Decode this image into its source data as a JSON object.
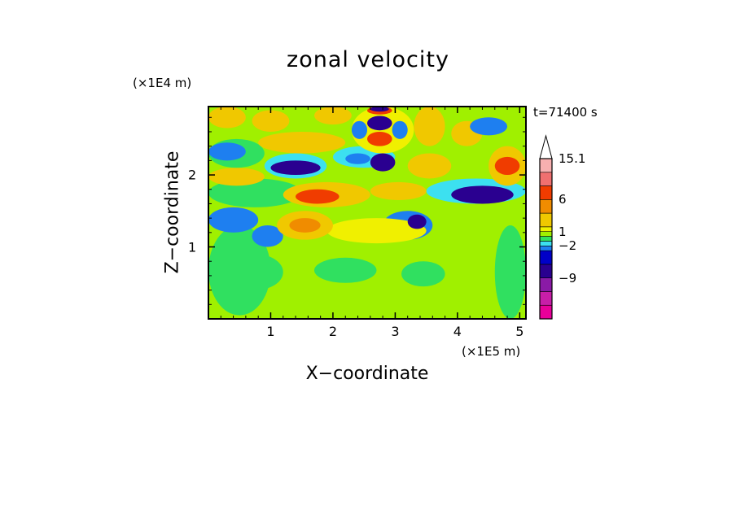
{
  "chart_data": {
    "type": "heatmap",
    "title": "zonal velocity",
    "xlabel": "X−coordinate",
    "ylabel": "Z−coordinate",
    "x_multiplier": "(×1E5 m)",
    "y_multiplier": "(×1E4 m)",
    "time_label": "t=71400 s",
    "xlim": [
      0,
      5.1
    ],
    "ylim": [
      0,
      2.95
    ],
    "x_ticks": [
      1,
      2,
      3,
      4,
      5
    ],
    "x_tick_labels": [
      "1",
      "2",
      "3",
      "4",
      "5"
    ],
    "y_ticks": [
      1,
      2
    ],
    "y_tick_labels": [
      "1",
      "2"
    ],
    "colorbar": {
      "levels": [
        -15,
        -12,
        -9,
        -6,
        -3,
        -2,
        -1,
        0,
        1,
        2,
        4,
        6,
        9,
        12,
        15.1
      ],
      "colors": [
        "#e8009a",
        "#c81ea8",
        "#8a1aa6",
        "#2a0090",
        "#0000c8",
        "#1e7ff0",
        "#3ce0f0",
        "#30e060",
        "#a0f000",
        "#f0f000",
        "#f0c800",
        "#f08c00",
        "#f03c00",
        "#f07070",
        "#f8b0b0",
        "#ffffff"
      ],
      "labels": [
        {
          "value": 15.1,
          "text": "15.1"
        },
        {
          "value": 6,
          "text": "6"
        },
        {
          "value": 1,
          "text": "1"
        },
        {
          "value": -2,
          "text": "−2"
        },
        {
          "value": -9,
          "text": "−9"
        }
      ]
    },
    "regions": [
      {
        "x": [
          0,
          5.1
        ],
        "z": [
          0,
          2.95
        ],
        "u": 0.5
      },
      {
        "x": [
          0,
          1.0
        ],
        "z": [
          0.05,
          1.3
        ],
        "u": -0.5
      },
      {
        "x": [
          4.6,
          5.1
        ],
        "z": [
          0,
          1.3
        ],
        "u": -0.5
      },
      {
        "x": [
          0.3,
          1.2
        ],
        "z": [
          0.4,
          0.9
        ],
        "u": -0.6
      },
      {
        "x": [
          1.7,
          2.7
        ],
        "z": [
          0.5,
          0.85
        ],
        "u": -0.5
      },
      {
        "x": [
          3.1,
          3.8
        ],
        "z": [
          0.45,
          0.8
        ],
        "u": -0.5
      },
      {
        "x": [
          0,
          0.8
        ],
        "z": [
          1.2,
          1.55
        ],
        "u": -2.5
      },
      {
        "x": [
          0.7,
          1.2
        ],
        "z": [
          1.0,
          1.3
        ],
        "u": -2.5
      },
      {
        "x": [
          2.8,
          3.6
        ],
        "z": [
          1.1,
          1.5
        ],
        "u": -2.5
      },
      {
        "x": [
          0,
          1.5
        ],
        "z": [
          1.55,
          1.95
        ],
        "u": -0.5
      },
      {
        "x": [
          1.9,
          3.5
        ],
        "z": [
          1.05,
          1.4
        ],
        "u": 1.5
      },
      {
        "x": [
          1.1,
          2.0
        ],
        "z": [
          1.1,
          1.5
        ],
        "u": 3
      },
      {
        "x": [
          1.3,
          1.8
        ],
        "z": [
          1.2,
          1.4
        ],
        "u": 5
      },
      {
        "x": [
          1.2,
          2.6
        ],
        "z": [
          1.55,
          1.9
        ],
        "u": 3
      },
      {
        "x": [
          1.4,
          2.1
        ],
        "z": [
          1.6,
          1.8
        ],
        "u": 6.5
      },
      {
        "x": [
          2.6,
          3.5
        ],
        "z": [
          1.65,
          1.9
        ],
        "u": 2.5
      },
      {
        "x": [
          3.2,
          3.5
        ],
        "z": [
          1.25,
          1.45
        ],
        "u": -7
      },
      {
        "x": [
          0,
          0.9
        ],
        "z": [
          1.85,
          2.1
        ],
        "u": 2.5
      },
      {
        "x": [
          0,
          0.9
        ],
        "z": [
          2.1,
          2.5
        ],
        "u": -0.5
      },
      {
        "x": [
          0,
          0.6
        ],
        "z": [
          2.2,
          2.45
        ],
        "u": -2.5
      },
      {
        "x": [
          0.9,
          1.9
        ],
        "z": [
          1.95,
          2.3
        ],
        "u": -1.5
      },
      {
        "x": [
          1.0,
          1.8
        ],
        "z": [
          2.0,
          2.2
        ],
        "u": -7
      },
      {
        "x": [
          0.8,
          2.2
        ],
        "z": [
          2.3,
          2.6
        ],
        "u": 2.5
      },
      {
        "x": [
          2.0,
          3.0
        ],
        "z": [
          2.1,
          2.4
        ],
        "u": -1.5
      },
      {
        "x": [
          2.2,
          2.6
        ],
        "z": [
          2.15,
          2.3
        ],
        "u": -2.5
      },
      {
        "x": [
          2.6,
          3.0
        ],
        "z": [
          2.05,
          2.3
        ],
        "u": -7
      },
      {
        "x": [
          3.2,
          3.9
        ],
        "z": [
          1.95,
          2.3
        ],
        "u": 2.5
      },
      {
        "x": [
          3.5,
          5.1
        ],
        "z": [
          1.6,
          1.95
        ],
        "u": -1.5
      },
      {
        "x": [
          3.9,
          4.9
        ],
        "z": [
          1.6,
          1.85
        ],
        "u": -7
      },
      {
        "x": [
          4.5,
          5.1
        ],
        "z": [
          1.85,
          2.4
        ],
        "u": 3
      },
      {
        "x": [
          4.6,
          5.0
        ],
        "z": [
          2.0,
          2.25
        ],
        "u": 6.5
      },
      {
        "x": [
          3.9,
          4.4
        ],
        "z": [
          2.4,
          2.75
        ],
        "u": 2.5
      },
      {
        "x": [
          4.2,
          4.8
        ],
        "z": [
          2.55,
          2.8
        ],
        "u": -2.5
      },
      {
        "x": [
          0,
          0.6
        ],
        "z": [
          2.65,
          2.95
        ],
        "u": 2.5
      },
      {
        "x": [
          0.7,
          1.3
        ],
        "z": [
          2.6,
          2.9
        ],
        "u": 3
      },
      {
        "x": [
          1.7,
          2.3
        ],
        "z": [
          2.7,
          2.95
        ],
        "u": 2.5
      },
      {
        "x": [
          2.3,
          3.3
        ],
        "z": [
          2.3,
          2.95
        ],
        "u": 1.5
      },
      {
        "x": [
          2.55,
          2.95
        ],
        "z": [
          2.4,
          2.6
        ],
        "u": 7
      },
      {
        "x": [
          2.55,
          2.95
        ],
        "z": [
          2.62,
          2.82
        ],
        "u": -7
      },
      {
        "x": [
          2.55,
          2.95
        ],
        "z": [
          2.84,
          2.95
        ],
        "u": 6.5
      },
      {
        "x": [
          2.3,
          2.55
        ],
        "z": [
          2.5,
          2.75
        ],
        "u": -2.5
      },
      {
        "x": [
          2.95,
          3.2
        ],
        "z": [
          2.5,
          2.75
        ],
        "u": -2.5
      },
      {
        "x": [
          2.6,
          2.9
        ],
        "z": [
          2.88,
          2.95
        ],
        "u": -7
      },
      {
        "x": [
          3.3,
          3.8
        ],
        "z": [
          2.4,
          2.95
        ],
        "u": 2.5
      }
    ]
  }
}
